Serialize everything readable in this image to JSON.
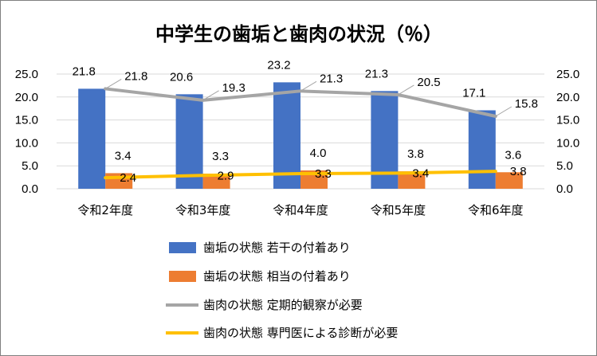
{
  "chart_data": {
    "type": "bar",
    "title": "中学生の歯垢と歯肉の状況（％）",
    "categories": [
      "令和2年度",
      "令和3年度",
      "令和4年度",
      "令和5年度",
      "令和6年度"
    ],
    "y_ticks": [
      "0.0",
      "5.0",
      "10.0",
      "15.0",
      "20.0",
      "25.0"
    ],
    "ylim": [
      0,
      25
    ],
    "y2lim": [
      0,
      25
    ],
    "grid": true,
    "legend_position": "bottom",
    "series": [
      {
        "name": "歯垢の状態 若干の付着あり",
        "kind": "bar",
        "color": "#4472c4",
        "values": [
          21.8,
          20.6,
          23.2,
          21.3,
          17.1
        ],
        "labels": [
          "21.8",
          "20.6",
          "23.2",
          "21.3",
          "17.1"
        ]
      },
      {
        "name": "歯垢の状態 相当の付着あり",
        "kind": "bar",
        "color": "#ed7d31",
        "values": [
          3.4,
          3.3,
          4.0,
          3.8,
          3.6
        ],
        "labels": [
          "3.4",
          "3.3",
          "4.0",
          "3.8",
          "3.6"
        ]
      },
      {
        "name": "歯肉の状態 定期的観察が必要",
        "kind": "line",
        "color": "#a5a5a5",
        "values": [
          21.8,
          19.3,
          21.3,
          20.5,
          15.8
        ],
        "labels": [
          "21.8",
          "19.3",
          "21.3",
          "20.5",
          "15.8"
        ]
      },
      {
        "name": "歯肉の状態 専門医による診断が必要",
        "kind": "line",
        "color": "#ffc000",
        "values": [
          2.4,
          2.9,
          3.3,
          3.4,
          3.8
        ],
        "labels": [
          "2.4",
          "2.9",
          "3.3",
          "3.4",
          "3.8"
        ]
      }
    ]
  }
}
